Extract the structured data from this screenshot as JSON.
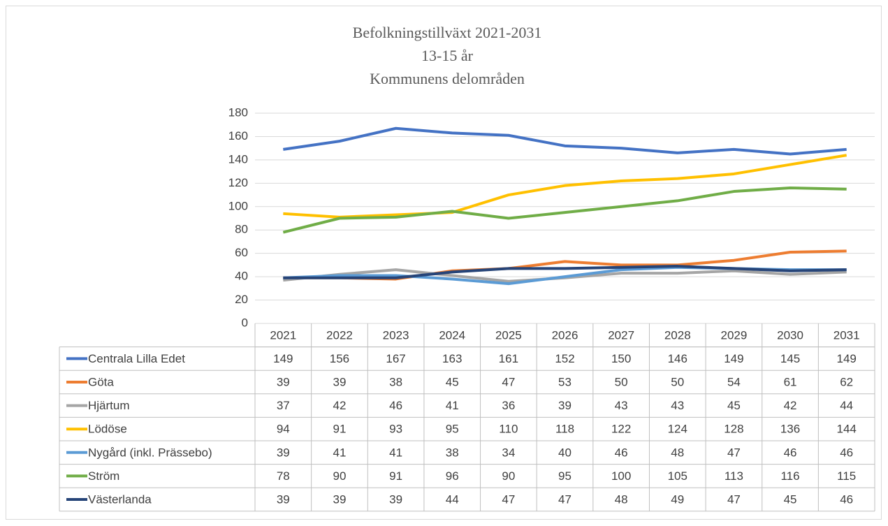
{
  "chart_data": {
    "type": "line",
    "title": "Befolkningstillväxt 2021-2031\n13-15 år\nKommunens delområden",
    "categories": [
      "2021",
      "2022",
      "2023",
      "2024",
      "2025",
      "2026",
      "2027",
      "2028",
      "2029",
      "2030",
      "2031"
    ],
    "ylim": [
      0,
      180
    ],
    "yticks": [
      0,
      20,
      40,
      60,
      80,
      100,
      120,
      140,
      160,
      180
    ],
    "grid": true,
    "series": [
      {
        "name": "Centrala Lilla Edet",
        "color": "#4472c4",
        "values": [
          149,
          156,
          167,
          163,
          161,
          152,
          150,
          146,
          149,
          145,
          149
        ]
      },
      {
        "name": "Göta",
        "color": "#ed7d31",
        "values": [
          39,
          39,
          38,
          45,
          47,
          53,
          50,
          50,
          54,
          61,
          62
        ]
      },
      {
        "name": "Hjärtum",
        "color": "#a5a5a5",
        "values": [
          37,
          42,
          46,
          41,
          36,
          39,
          43,
          43,
          45,
          42,
          44
        ]
      },
      {
        "name": "Lödöse",
        "color": "#ffc000",
        "values": [
          94,
          91,
          93,
          95,
          110,
          118,
          122,
          124,
          128,
          136,
          144
        ]
      },
      {
        "name": "Nygård (inkl. Prässebo)",
        "color": "#5b9bd5",
        "values": [
          39,
          41,
          41,
          38,
          34,
          40,
          46,
          48,
          47,
          46,
          46
        ]
      },
      {
        "name": "Ström",
        "color": "#70ad47",
        "values": [
          78,
          90,
          91,
          96,
          90,
          95,
          100,
          105,
          113,
          116,
          115
        ]
      },
      {
        "name": "Västerlanda",
        "color": "#264478",
        "values": [
          39,
          39,
          39,
          44,
          47,
          47,
          48,
          49,
          47,
          45,
          46
        ]
      }
    ]
  }
}
